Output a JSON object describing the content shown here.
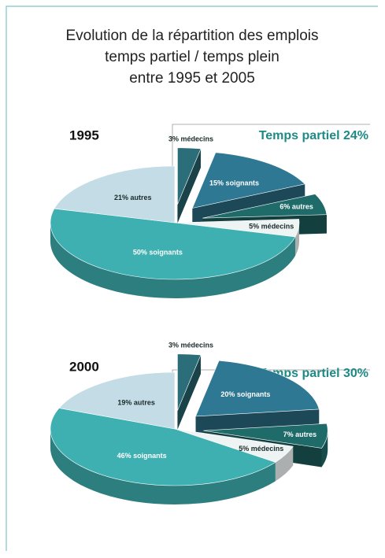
{
  "title": [
    "Evolution de la répartition des emplois",
    "temps partiel / temps plein",
    "entre 1995 et 2005"
  ],
  "chart_data": [
    {
      "type": "pie",
      "title": "1995",
      "annotation": "Temps partiel 24%",
      "values": [
        3,
        15,
        6,
        5,
        50,
        21
      ],
      "value_labels": [
        "3% médecins",
        "15% soignants",
        "6% autres",
        "5% médecins",
        "50% soignants",
        "21% autres"
      ],
      "colors": [
        "#2b6e7a",
        "#2f7893",
        "#1f6b69",
        "#eef3f4",
        "#3fb0b1",
        "#c3dce5"
      ],
      "explode": [
        true,
        true,
        true,
        false,
        false,
        false
      ]
    },
    {
      "type": "pie",
      "title": "2000",
      "annotation": "Temps partiel 30%",
      "values": [
        3,
        20,
        7,
        5,
        46,
        19
      ],
      "value_labels": [
        "3% médecins",
        "20% soignants",
        "7% autres",
        "5% médecins",
        "46% soignants",
        "19% autres"
      ],
      "colors": [
        "#2b6e7a",
        "#2f7893",
        "#1f6b69",
        "#eef3f4",
        "#3fb0b1",
        "#c3dce5"
      ],
      "explode": [
        true,
        true,
        true,
        false,
        false,
        false
      ]
    }
  ]
}
